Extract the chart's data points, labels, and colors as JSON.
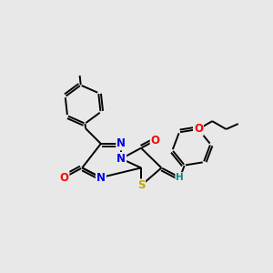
{
  "background_color": "#e8e8e8",
  "bond_color": "#000000",
  "atom_colors": {
    "N": "#0000ee",
    "O": "#ff0000",
    "S": "#bbaa00",
    "H": "#008888",
    "C": "#000000"
  },
  "figsize": [
    3.0,
    3.0
  ],
  "dpi": 100
}
